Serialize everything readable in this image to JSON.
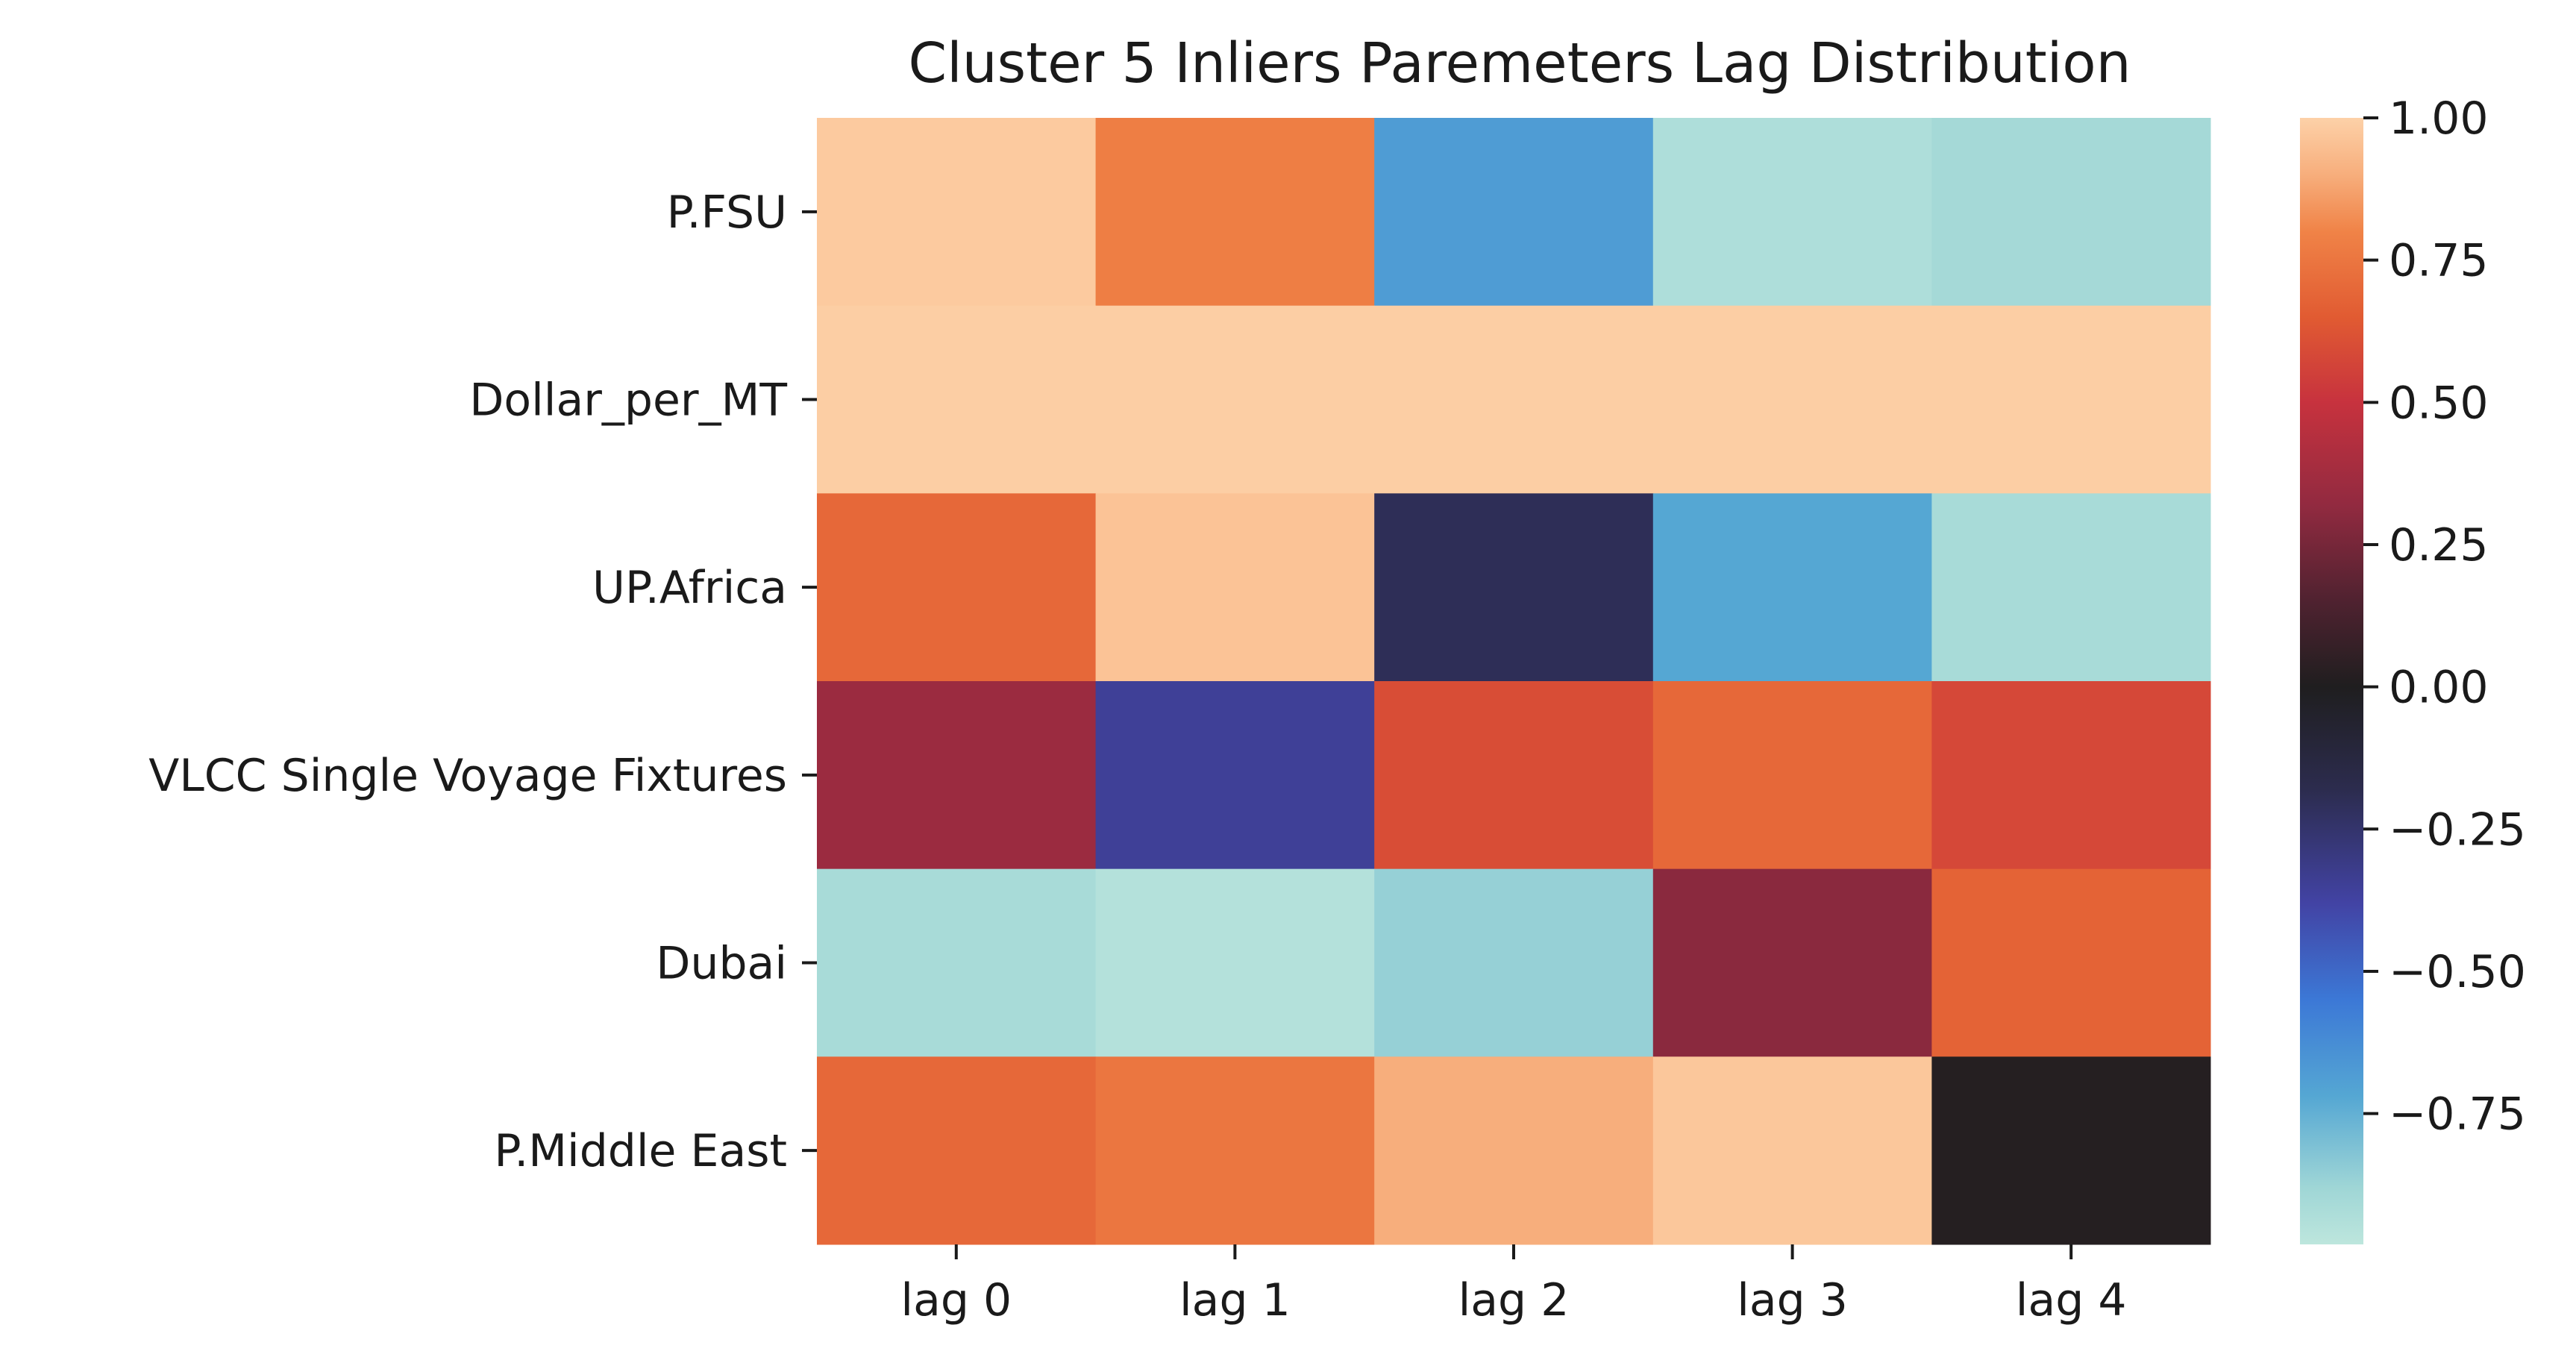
{
  "chart_data": {
    "type": "heatmap",
    "title": "Cluster 5 Inliers Paremeters Lag Distribution",
    "x_categories": [
      "lag 0",
      "lag 1",
      "lag 2",
      "lag 3",
      "lag 4"
    ],
    "y_categories": [
      "P.FSU",
      "Dollar_per_MT",
      "UP.Africa",
      "VLCC Single Voyage Fixtures",
      "Dubai",
      "P.Middle East"
    ],
    "values": [
      [
        0.98,
        0.78,
        -0.68,
        -0.93,
        -0.9
      ],
      [
        0.99,
        0.99,
        0.99,
        0.99,
        0.99
      ],
      [
        0.7,
        0.96,
        -0.2,
        -0.72,
        -0.91
      ],
      [
        0.35,
        -0.35,
        0.6,
        0.7,
        0.58
      ],
      [
        -0.91,
        -0.95,
        -0.86,
        0.3,
        0.68
      ],
      [
        0.7,
        0.75,
        0.9,
        0.97,
        0.02
      ]
    ],
    "colorbar": {
      "range": [
        -0.98,
        1.0
      ],
      "ticks": [
        1.0,
        0.75,
        0.5,
        0.25,
        0.0,
        -0.25,
        -0.5,
        -0.75
      ],
      "tick_labels": [
        "1.00",
        "0.75",
        "0.50",
        "0.25",
        "0.00",
        "−0.25",
        "−0.50",
        "−0.75"
      ],
      "colormap": "icefire",
      "color_stops": [
        {
          "v": -0.98,
          "c": "#bde6dd"
        },
        {
          "v": -0.88,
          "c": "#9fd6d6"
        },
        {
          "v": -0.72,
          "c": "#55a7d3"
        },
        {
          "v": -0.55,
          "c": "#3c78d6"
        },
        {
          "v": -0.38,
          "c": "#4243a4"
        },
        {
          "v": -0.18,
          "c": "#2c2c4e"
        },
        {
          "v": 0.0,
          "c": "#1f1e1f"
        },
        {
          "v": 0.15,
          "c": "#4f2230"
        },
        {
          "v": 0.32,
          "c": "#922a40"
        },
        {
          "v": 0.5,
          "c": "#c7323e"
        },
        {
          "v": 0.65,
          "c": "#e15b32"
        },
        {
          "v": 0.8,
          "c": "#f08347"
        },
        {
          "v": 0.9,
          "c": "#f7ae7c"
        },
        {
          "v": 1.0,
          "c": "#fdd1a8"
        }
      ]
    }
  }
}
